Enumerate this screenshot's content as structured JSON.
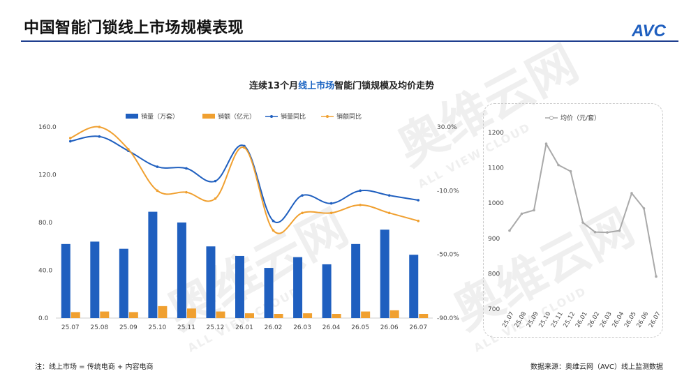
{
  "header": {
    "title": "中国智能门锁线上市场规模表现",
    "logo_text": "AVC",
    "accent_color": "#1f3f8f"
  },
  "chart_title": {
    "prefix": "连续13个月",
    "highlight": "线上市场",
    "suffix": "智能门锁规模及均价走势",
    "highlight_color": "#1a63c2"
  },
  "watermark": {
    "text": "奥维云网",
    "sub": "ALL VIEW CLOUD"
  },
  "chart_data": [
    {
      "type": "bar",
      "categories": [
        "25.07",
        "25.08",
        "25.09",
        "25.10",
        "25.11",
        "25.12",
        "26.01",
        "26.02",
        "26.03",
        "26.04",
        "26.05",
        "26.06",
        "26.07"
      ],
      "series": [
        {
          "name": "销量（万套）",
          "kind": "bar",
          "axis": "left",
          "color": "#1f5fbf",
          "values": [
            62,
            64,
            58,
            89,
            80,
            60,
            52,
            42,
            51,
            45,
            62,
            74,
            53
          ]
        },
        {
          "name": "销额（亿元）",
          "kind": "bar",
          "axis": "left",
          "color": "#f0a030",
          "values": [
            5,
            5.5,
            5,
            10,
            8,
            5.5,
            4,
            3.5,
            4,
            3.5,
            5.5,
            6.5,
            3.5
          ]
        },
        {
          "name": "销量同比",
          "kind": "line",
          "axis": "right",
          "color": "#1f5fbf",
          "values": [
            21,
            24,
            15,
            5,
            4,
            -4,
            18,
            -29,
            -13,
            -18,
            -10,
            -13,
            -16
          ]
        },
        {
          "name": "销额同比",
          "kind": "line",
          "axis": "right",
          "color": "#f0a030",
          "values": [
            23,
            30,
            16,
            -10,
            -11,
            -15,
            17,
            -35,
            -24,
            -24,
            -19,
            -24,
            -29
          ]
        }
      ],
      "left_ticks": [
        "0.0",
        "40.0",
        "80.0",
        "120.0",
        "160.0"
      ],
      "ylim": [
        0,
        160
      ],
      "right_ticks": [
        "-90.0%",
        "-50.0%",
        "-10.0%",
        "30.0%"
      ],
      "y2lim": [
        -90,
        30
      ],
      "legend": "top"
    },
    {
      "type": "line",
      "categories": [
        "25.07",
        "25.08",
        "25.09",
        "25.10",
        "25.11",
        "25.12",
        "26.01",
        "26.02",
        "26.03",
        "26.04",
        "26.05",
        "26.06",
        "26.07"
      ],
      "series": [
        {
          "name": "均价（元/套）",
          "color": "#a9a9a9",
          "values": [
            922,
            970,
            980,
            1168,
            1108,
            1090,
            945,
            918,
            917,
            922,
            1028,
            985,
            792
          ]
        }
      ],
      "y_ticks": [
        "700",
        "800",
        "900",
        "1000",
        "1100",
        "1200"
      ],
      "ylim": [
        700,
        1200
      ],
      "legend": "top"
    }
  ],
  "footer": {
    "note": "注：线上市场 = 传统电商 + 内容电商",
    "source": "数据来源：奥维云网（AVC）线上监测数据"
  }
}
